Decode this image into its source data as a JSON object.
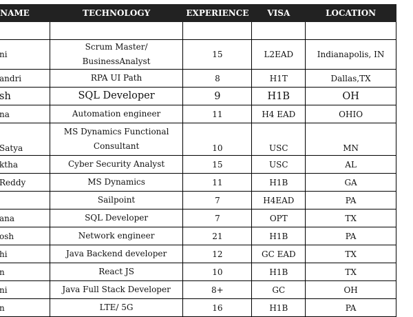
{
  "headers": [
    "T NAME",
    "TECHNOLOGY",
    "EXPERIENCE",
    "VISA",
    "LOCATION"
  ],
  "rows": [
    {
      "name": "",
      "technology": "",
      "experience": "",
      "visa": "",
      "location": ""
    },
    {
      "name": "ni",
      "technology": "Scrum Master/ BusinessAnalyst",
      "experience": "15",
      "visa": "L2EAD",
      "location": "Indianapolis, IN"
    },
    {
      "name": "andri",
      "technology": "RPA UI Path",
      "experience": "8",
      "visa": "H1T",
      "location": "Dallas,TX"
    },
    {
      "name": "sh",
      "technology": "SQL Developer",
      "experience": "9",
      "visa": "H1B",
      "location": "OH"
    },
    {
      "name": "na",
      "technology": "Automation engineer",
      "experience": "11",
      "visa": "H4 EAD",
      "location": "OHIO"
    },
    {
      "name": "Satya",
      "technology": "MS Dynamics Functional Consultant",
      "experience": "10",
      "visa": "USC",
      "location": "MN"
    },
    {
      "name": "ktha",
      "technology": "Cyber Security Analyst",
      "experience": "15",
      "visa": "USC",
      "location": "AL"
    },
    {
      "name": "Reddy",
      "technology": "MS Dynamics",
      "experience": "11",
      "visa": "H1B",
      "location": "GA"
    },
    {
      "name": "",
      "technology": "Sailpoint",
      "experience": "7",
      "visa": "H4EAD",
      "location": "PA"
    },
    {
      "name": "ana",
      "technology": "SQL Developer",
      "experience": "7",
      "visa": "OPT",
      "location": "TX"
    },
    {
      "name": "osh",
      "technology": "Network engineer",
      "experience": "21",
      "visa": "H1B",
      "location": "PA"
    },
    {
      "name": "hi",
      "technology": "Java Backend developer",
      "experience": "12",
      "visa": "GC EAD",
      "location": "TX"
    },
    {
      "name": "n",
      "technology": "React JS",
      "experience": "10",
      "visa": "H1B",
      "location": "TX"
    },
    {
      "name": "ni",
      "technology": "Java Full Stack Developer",
      "experience": "8+",
      "visa": "GC",
      "location": "OH"
    },
    {
      "name": "n",
      "technology": "LTE/ 5G",
      "experience": "16",
      "visa": "H1B",
      "location": "PA"
    }
  ]
}
